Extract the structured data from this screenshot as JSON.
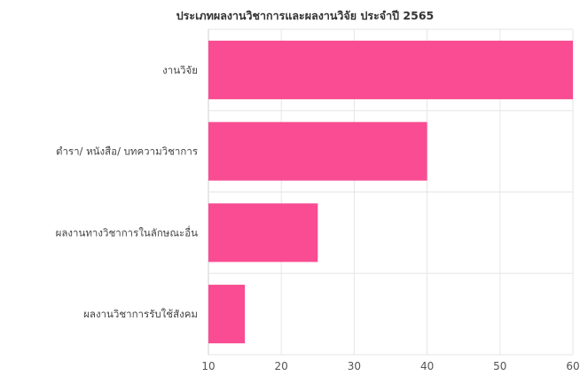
{
  "chart_data": {
    "type": "bar",
    "orientation": "horizontal",
    "title": "ประเภทผลงานวิชาการและผลงานวิจัย ประจำปี 2565",
    "categories": [
      "งานวิจัย",
      "ตำรา/ หนังสือ/ บทความวิชาการ",
      "ผลงานทางวิชาการในลักษณะอื่น",
      "ผลงานวิชาการรับใช้สังคม"
    ],
    "values": [
      60,
      40,
      25,
      15
    ],
    "xlim": [
      10,
      60
    ],
    "xticks": [
      10,
      20,
      30,
      40,
      50,
      60
    ],
    "xlabel": "",
    "ylabel": "",
    "grid": true,
    "legend": "none",
    "bar_color": "#f94c92"
  }
}
